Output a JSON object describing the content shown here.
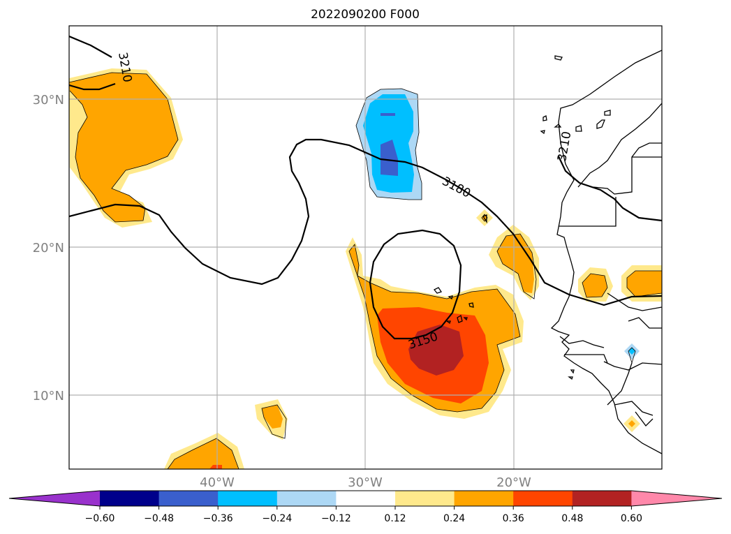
{
  "title": "2022090200 F000",
  "lat_labels": [
    "30°N",
    "20°N",
    "10°N"
  ],
  "lon_labels": [
    "40°W",
    "30°W",
    "20°W"
  ],
  "contour_labels": [
    "3210",
    "3210",
    "3180",
    "3150"
  ],
  "colorbar": {
    "tick_labels": [
      "−0.60",
      "−0.48",
      "−0.36",
      "−0.24",
      "−0.12",
      "0.12",
      "0.24",
      "0.36",
      "0.48",
      "0.60"
    ],
    "colors": [
      "#9932cc",
      "#00008b",
      "#3a5fcd",
      "#00bfff",
      "#add8f5",
      "#ffffff",
      "#ffe98c",
      "#ffa500",
      "#ff4500",
      "#b22222",
      "#ff88aa"
    ]
  },
  "colors": {
    "orange": "#ffa500",
    "light_yellow": "#ffe98c",
    "red_orange": "#ff4500",
    "dark_red": "#b22222",
    "sky_blue": "#00bfff",
    "light_blue": "#add8f5",
    "royal_blue": "#3a5fcd",
    "grid": "#b0b0b0"
  }
}
